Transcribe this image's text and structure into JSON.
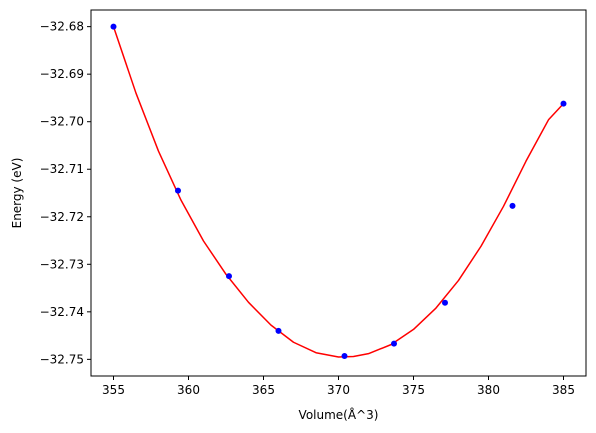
{
  "chart_data": {
    "type": "line",
    "title": "",
    "xlabel": "Volume(Å^3)",
    "ylabel": "Energy (eV)",
    "xlim": [
      353.5,
      386.5
    ],
    "ylim": [
      -32.7535,
      -32.6765
    ],
    "x_ticks": [
      355,
      360,
      365,
      370,
      375,
      380,
      385
    ],
    "x_tick_labels": [
      "355",
      "360",
      "365",
      "370",
      "375",
      "380",
      "385"
    ],
    "y_ticks": [
      -32.68,
      -32.69,
      -32.7,
      -32.71,
      -32.72,
      -32.73,
      -32.74,
      -32.75
    ],
    "y_tick_labels": [
      "−32.68",
      "−32.69",
      "−32.70",
      "−32.71",
      "−32.72",
      "−32.73",
      "−32.74",
      "−32.75"
    ],
    "grid": false,
    "legend": "none",
    "series": [
      {
        "kind": "scatter",
        "color": "#0000ff",
        "x": [
          355.0,
          359.3,
          362.7,
          366.0,
          370.4,
          373.7,
          377.1,
          381.6,
          385.0
        ],
        "y": [
          -32.68,
          -32.7145,
          -32.7325,
          -32.744,
          -32.7493,
          -32.7467,
          -32.7381,
          -32.7177,
          -32.6962
        ]
      },
      {
        "kind": "line",
        "color": "#ff0000",
        "x": [
          355.0,
          356.5,
          358.0,
          359.5,
          361.0,
          362.5,
          364.0,
          365.5,
          367.0,
          368.5,
          370.0,
          371.0,
          372.0,
          373.5,
          375.0,
          376.5,
          378.0,
          379.5,
          381.0,
          382.5,
          384.0,
          385.0
        ],
        "y": [
          -32.68,
          -32.694,
          -32.7062,
          -32.7165,
          -32.7251,
          -32.7321,
          -32.738,
          -32.7428,
          -32.7464,
          -32.7486,
          -32.7495,
          -32.7494,
          -32.7488,
          -32.7469,
          -32.7437,
          -32.7392,
          -32.7334,
          -32.7262,
          -32.7178,
          -32.7083,
          -32.6996,
          -32.6962
        ]
      }
    ]
  }
}
